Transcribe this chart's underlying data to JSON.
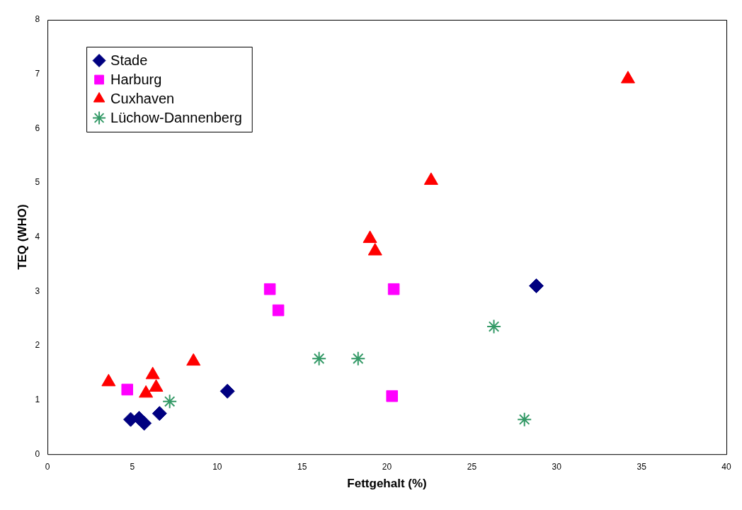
{
  "chart_data": {
    "type": "scatter",
    "xlabel": "Fettgehalt (%)",
    "ylabel": "TEQ (WHO)",
    "xlim": [
      0,
      40
    ],
    "xticks": [
      0,
      5,
      10,
      15,
      20,
      25,
      30,
      35,
      40
    ],
    "ylim": [
      0,
      8
    ],
    "yticks": [
      0,
      1,
      2,
      3,
      4,
      5,
      6,
      7,
      8
    ],
    "grid": false,
    "legend": "top left",
    "series": [
      {
        "name": "Stade",
        "color": "#000080",
        "marker": "diamond",
        "x": [
          4.9,
          5.4,
          5.7,
          6.6,
          10.6,
          28.8
        ],
        "values": [
          0.64,
          0.66,
          0.57,
          0.75,
          1.16,
          3.1
        ]
      },
      {
        "name": "Harburg",
        "color": "#ff00ff",
        "marker": "square",
        "x": [
          4.7,
          13.1,
          13.6,
          20.4,
          20.3
        ],
        "values": [
          1.19,
          3.04,
          2.65,
          3.04,
          1.07
        ]
      },
      {
        "name": "Cuxhaven",
        "color": "#ff0000",
        "marker": "triangle",
        "x": [
          3.6,
          6.2,
          6.4,
          5.8,
          8.6,
          19.0,
          19.3,
          22.6,
          34.2
        ],
        "values": [
          1.33,
          1.46,
          1.23,
          1.12,
          1.71,
          3.97,
          3.74,
          5.04,
          6.91
        ]
      },
      {
        "name": "Lüchow-Dannenberg",
        "color": "#339966",
        "marker": "cross",
        "x": [
          7.2,
          16.0,
          18.3,
          26.3,
          28.1
        ],
        "values": [
          0.97,
          1.76,
          1.76,
          2.35,
          0.64
        ]
      }
    ]
  }
}
